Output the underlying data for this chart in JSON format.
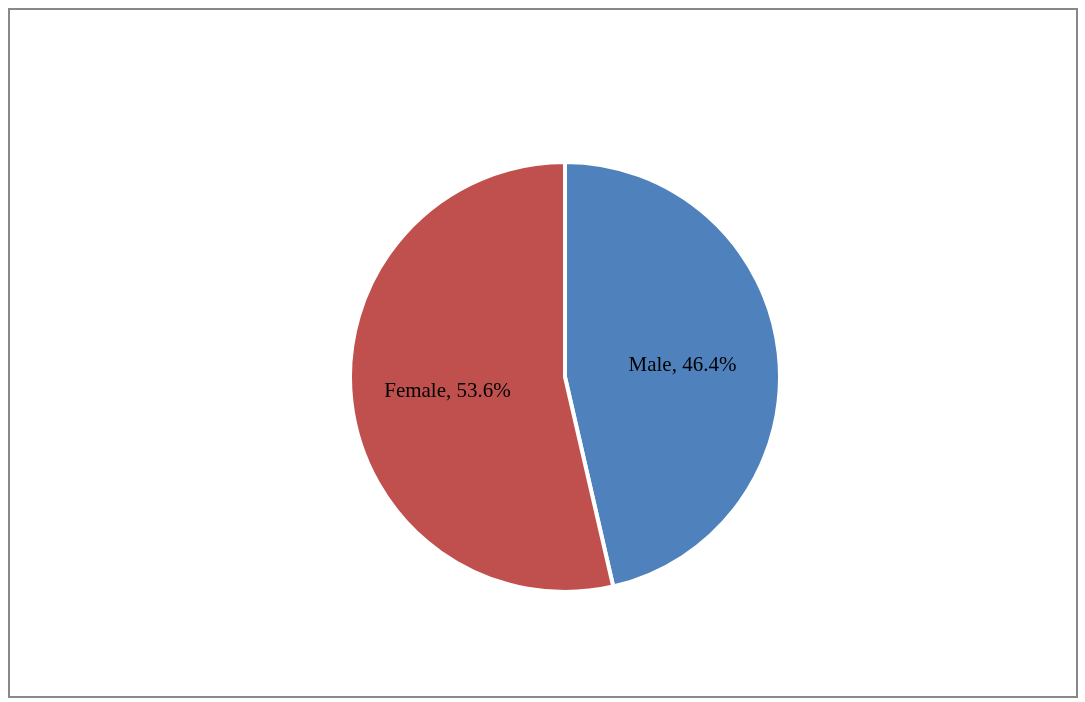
{
  "chart_data": {
    "type": "pie",
    "categories": [
      "Male",
      "Female"
    ],
    "values": [
      46.4,
      53.6
    ],
    "colors": [
      "#4f81bd",
      "#c0504d"
    ],
    "value_labels": [
      "46.4%",
      "53.6%"
    ],
    "legend": false
  }
}
